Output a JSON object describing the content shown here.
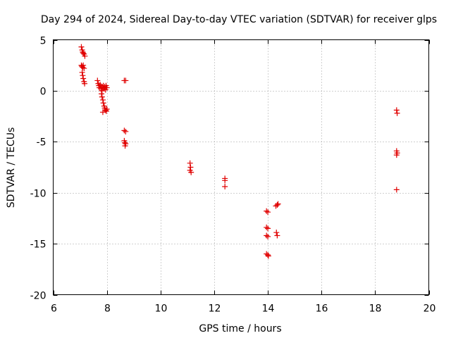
{
  "chart_data": {
    "type": "scatter",
    "title": "Day 294 of 2024, Sidereal Day-to-day VTEC variation (SDTVAR) for receiver glps",
    "xlabel": "GPS time / hours",
    "ylabel": "SDTVAR / TECUs",
    "xlim": [
      6,
      20
    ],
    "ylim": [
      -20,
      5
    ],
    "xticks": [
      6,
      8,
      10,
      12,
      14,
      16,
      18,
      20
    ],
    "yticks": [
      5,
      0,
      -5,
      -10,
      -15,
      -20
    ],
    "marker": "+",
    "color": "#e00000",
    "grid": true,
    "series": [
      {
        "name": "SDTVAR",
        "points": [
          [
            7.05,
            4.3
          ],
          [
            7.08,
            4.0
          ],
          [
            7.1,
            3.8
          ],
          [
            7.12,
            3.7
          ],
          [
            7.15,
            3.6
          ],
          [
            7.18,
            3.4
          ],
          [
            7.05,
            2.5
          ],
          [
            7.07,
            2.4
          ],
          [
            7.1,
            2.3
          ],
          [
            7.12,
            2.5
          ],
          [
            7.15,
            2.2
          ],
          [
            7.08,
            1.8
          ],
          [
            7.1,
            1.5
          ],
          [
            7.12,
            1.2
          ],
          [
            7.15,
            0.9
          ],
          [
            7.17,
            0.7
          ],
          [
            7.65,
            1.0
          ],
          [
            7.68,
            0.7
          ],
          [
            7.7,
            0.5
          ],
          [
            7.72,
            0.3
          ],
          [
            7.75,
            0.6
          ],
          [
            7.78,
            0.2
          ],
          [
            7.8,
            0.4
          ],
          [
            7.82,
            0.0
          ],
          [
            7.85,
            0.3
          ],
          [
            7.87,
            0.5
          ],
          [
            7.9,
            0.2
          ],
          [
            7.92,
            0.4
          ],
          [
            7.95,
            0.1
          ],
          [
            7.97,
            0.5
          ],
          [
            8.0,
            0.3
          ],
          [
            7.8,
            -0.3
          ],
          [
            7.82,
            -0.6
          ],
          [
            7.85,
            -0.9
          ],
          [
            7.87,
            -1.2
          ],
          [
            7.9,
            -1.5
          ],
          [
            7.92,
            -1.7
          ],
          [
            7.95,
            -1.9
          ],
          [
            7.98,
            -2.0
          ],
          [
            8.0,
            -1.8
          ],
          [
            7.85,
            -2.1
          ],
          [
            8.65,
            1.0
          ],
          [
            8.7,
            1.0
          ],
          [
            8.65,
            -3.9
          ],
          [
            8.7,
            -4.0
          ],
          [
            8.65,
            -4.9
          ],
          [
            8.67,
            -5.1
          ],
          [
            8.7,
            -5.2
          ],
          [
            8.68,
            -5.4
          ],
          [
            11.1,
            -7.1
          ],
          [
            11.12,
            -7.5
          ],
          [
            11.1,
            -7.8
          ],
          [
            11.14,
            -8.0
          ],
          [
            12.4,
            -8.6
          ],
          [
            12.4,
            -8.8
          ],
          [
            12.4,
            -9.4
          ],
          [
            13.95,
            -11.8
          ],
          [
            14.0,
            -11.9
          ],
          [
            13.95,
            -13.4
          ],
          [
            14.0,
            -13.5
          ],
          [
            13.95,
            -14.2
          ],
          [
            14.0,
            -14.3
          ],
          [
            13.95,
            -16.0
          ],
          [
            14.0,
            -16.1
          ],
          [
            14.02,
            -16.2
          ],
          [
            14.3,
            -11.3
          ],
          [
            14.35,
            -11.2
          ],
          [
            14.38,
            -11.1
          ],
          [
            14.32,
            -13.9
          ],
          [
            14.35,
            -14.2
          ],
          [
            18.8,
            -1.9
          ],
          [
            18.82,
            -2.2
          ],
          [
            18.8,
            -5.9
          ],
          [
            18.82,
            -6.1
          ],
          [
            18.8,
            -6.3
          ],
          [
            18.8,
            -9.7
          ]
        ]
      }
    ]
  }
}
